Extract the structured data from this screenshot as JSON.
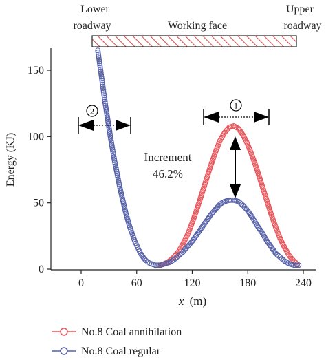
{
  "chart_data": {
    "type": "scatter",
    "xlabel_var": "x",
    "xlabel_unit": "(m)",
    "ylabel": "Energy (KJ)",
    "xlim": [
      -25,
      242
    ],
    "ylim": [
      0,
      165
    ],
    "x_ticks": [
      0,
      60,
      120,
      180,
      240
    ],
    "y_ticks": [
      0,
      50,
      100,
      150
    ],
    "grid": false,
    "legend_position": "bottom-left",
    "top_labels": {
      "left_line1": "Lower",
      "left_line2": "roadway",
      "center": "Working face",
      "right_line1": "Upper",
      "right_line2": "roadway"
    },
    "annotations": {
      "marker_1": "1",
      "marker_2": "2",
      "increment_line1": "Increment",
      "increment_line2": "46.2%"
    },
    "colors": {
      "annihilation": "#e8555a",
      "regular": "#5560a8",
      "hatch": "#d9534f",
      "axis": "#222222"
    },
    "series": [
      {
        "name": "No.8 Coal annihilation",
        "color": "#e8555a",
        "x": [
          85,
          90,
          95,
          100,
          105,
          110,
          115,
          120,
          125,
          130,
          135,
          140,
          145,
          150,
          155,
          160,
          165,
          170,
          175,
          180,
          185,
          190,
          195,
          200,
          205,
          210,
          215,
          220,
          225,
          230,
          235
        ],
        "y": [
          3,
          4,
          6,
          9,
          13,
          19,
          26,
          35,
          45,
          56,
          67,
          78,
          88,
          97,
          103,
          107,
          108,
          106,
          101,
          94,
          85,
          75,
          64,
          53,
          42,
          32,
          23,
          16,
          10,
          6,
          3
        ]
      },
      {
        "name": "No.8 Coal regular",
        "color": "#5560a8",
        "x": [
          18,
          20,
          22,
          24,
          26,
          28,
          30,
          32,
          34,
          36,
          38,
          40,
          42,
          44,
          46,
          48,
          50,
          52,
          54,
          56,
          58,
          60,
          62,
          64,
          66,
          68,
          70,
          72,
          74,
          76,
          78,
          80,
          82,
          84,
          86,
          88,
          90,
          95,
          100,
          105,
          110,
          115,
          120,
          125,
          130,
          135,
          140,
          145,
          150,
          155,
          160,
          165,
          170,
          175,
          180,
          185,
          190,
          195,
          200,
          205,
          210,
          215,
          220,
          225,
          230,
          235
        ],
        "y": [
          165,
          155,
          145,
          135,
          125,
          116,
          107,
          98,
          90,
          82,
          75,
          68,
          61,
          55,
          49,
          43,
          38,
          33,
          29,
          25,
          21,
          18,
          15,
          12,
          10,
          8,
          6.5,
          5.5,
          4.5,
          4,
          3.5,
          3,
          3,
          3,
          3,
          3.5,
          4,
          5,
          7,
          10,
          13,
          17,
          21,
          26,
          31,
          36,
          41,
          45,
          49,
          51,
          52,
          52,
          51,
          48,
          44,
          39,
          33,
          28,
          22,
          17,
          12,
          9,
          6,
          4,
          3,
          3
        ]
      }
    ]
  }
}
